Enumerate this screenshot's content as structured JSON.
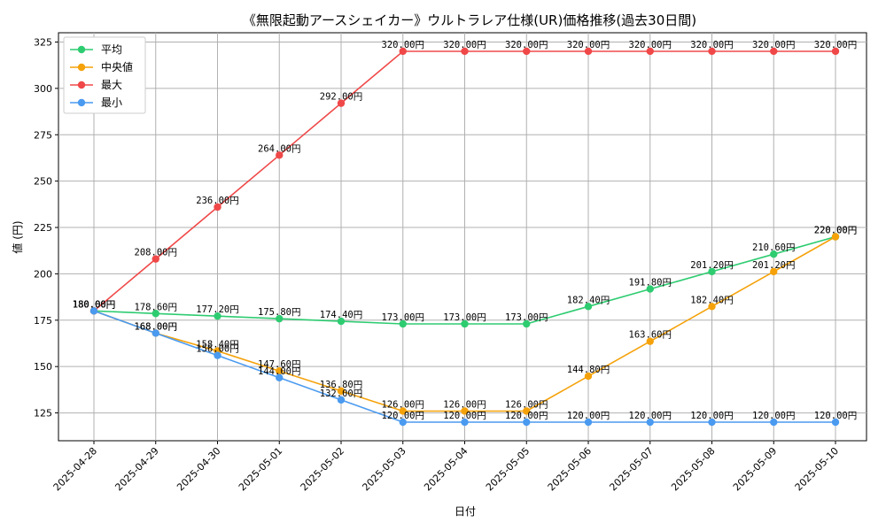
{
  "chart_data": {
    "type": "line",
    "title": "《無限起動アースシェイカー》ウルトラレア仕様(UR)価格推移(過去30日間)",
    "xlabel": "日付",
    "ylabel": "値 (円)",
    "ylim": [
      110,
      330
    ],
    "yticks": [
      125,
      150,
      175,
      200,
      225,
      250,
      275,
      300,
      325
    ],
    "grid": true,
    "legend_position": "top-left",
    "label_suffix": "円",
    "categories": [
      "2025-04-28",
      "2025-04-29",
      "2025-04-30",
      "2025-05-01",
      "2025-05-02",
      "2025-05-03",
      "2025-05-04",
      "2025-05-05",
      "2025-05-06",
      "2025-05-07",
      "2025-05-08",
      "2025-05-09",
      "2025-05-10"
    ],
    "series": [
      {
        "name": "平均",
        "color": "#2ecc71",
        "values": [
          180.0,
          178.6,
          177.2,
          175.8,
          174.4,
          173.0,
          173.0,
          173.0,
          182.4,
          191.8,
          201.2,
          210.6,
          220.0
        ]
      },
      {
        "name": "中央値",
        "color": "#f5a20a",
        "values": [
          180.0,
          168.0,
          158.4,
          147.6,
          136.8,
          126.0,
          126.0,
          126.0,
          144.8,
          163.6,
          182.4,
          201.2,
          220.0
        ]
      },
      {
        "name": "最大",
        "color": "#f04848",
        "values": [
          180.0,
          208.0,
          236.0,
          264.0,
          292.0,
          320.0,
          320.0,
          320.0,
          320.0,
          320.0,
          320.0,
          320.0,
          320.0
        ]
      },
      {
        "name": "最小",
        "color": "#4a9af0",
        "values": [
          180.0,
          168.0,
          156.0,
          144.0,
          132.0,
          120.0,
          120.0,
          120.0,
          120.0,
          120.0,
          120.0,
          120.0,
          120.0
        ]
      }
    ]
  }
}
